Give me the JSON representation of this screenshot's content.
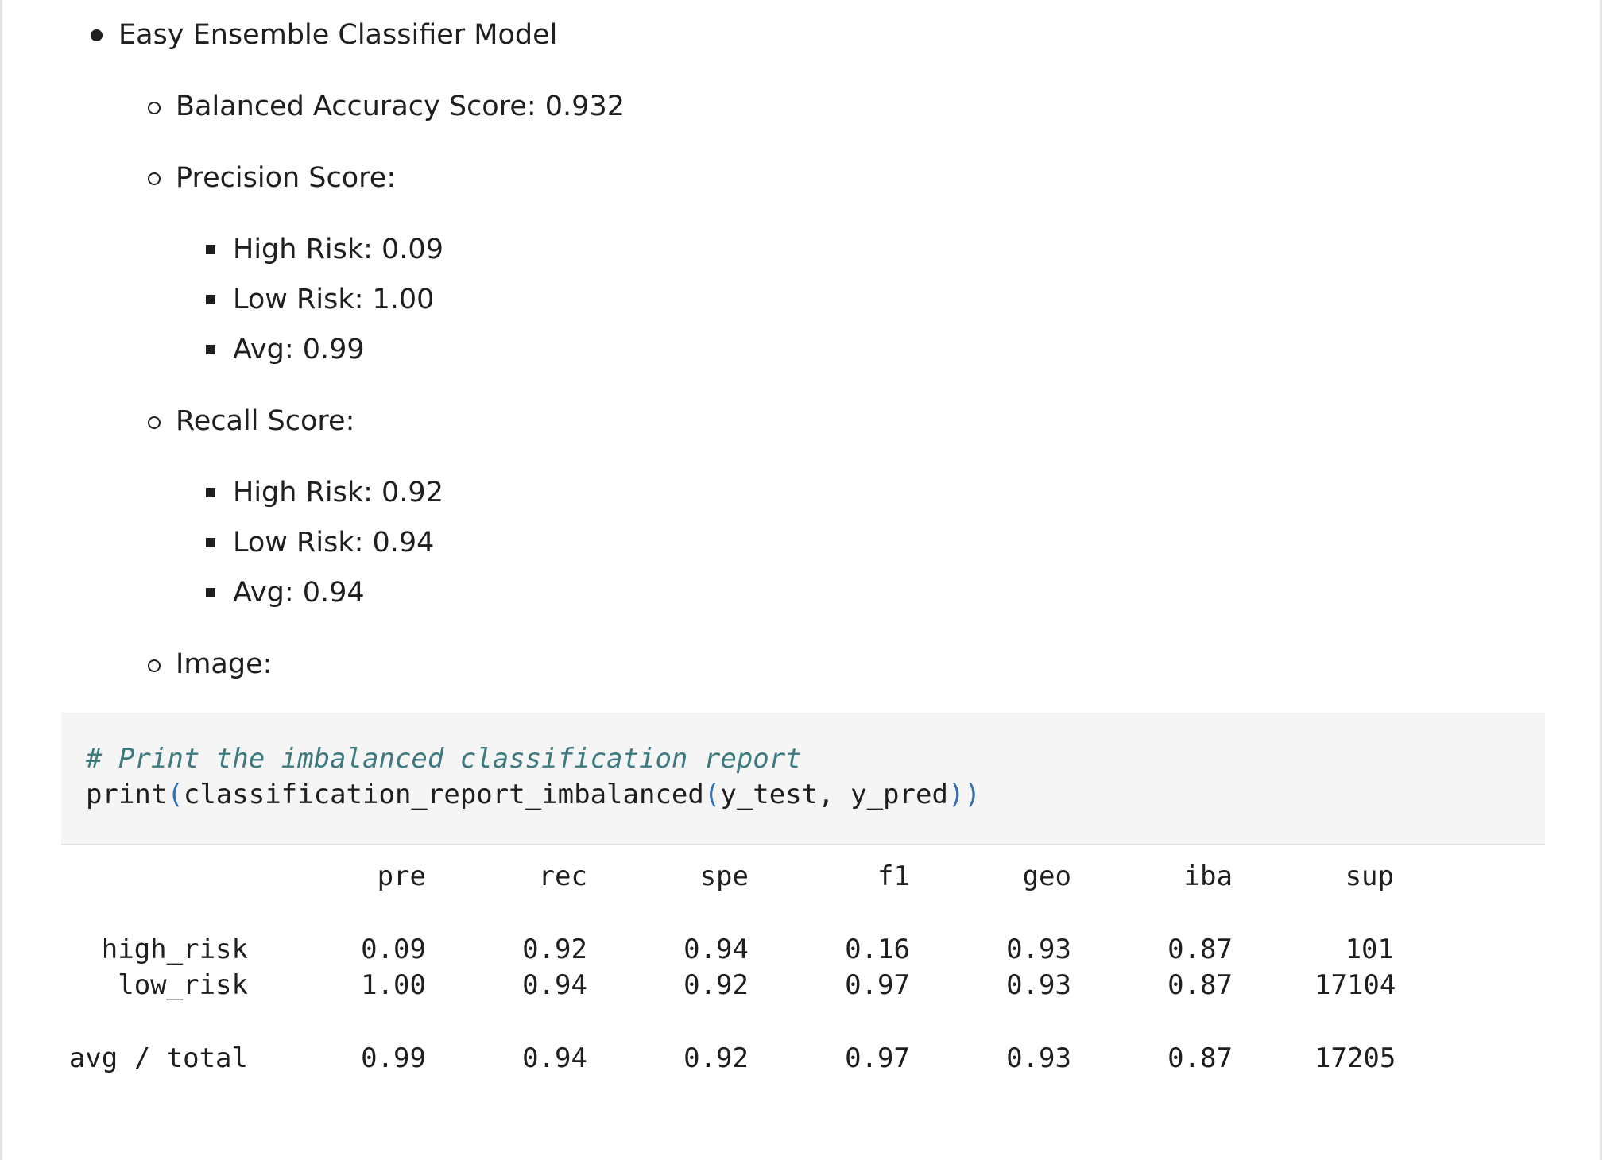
{
  "list": {
    "model_title": "Easy Ensemble Classifier Model",
    "balanced_accuracy": "Balanced Accuracy Score: 0.932",
    "precision_heading": "Precision Score:",
    "precision_items": [
      "High Risk: 0.09",
      "Low Risk: 1.00",
      "Avg: 0.99"
    ],
    "recall_heading": "Recall Score:",
    "recall_items": [
      "High Risk: 0.92",
      "Low Risk: 0.94",
      "Avg: 0.94"
    ],
    "image_heading": "Image:"
  },
  "code": {
    "comment": "# Print the imbalanced classification report",
    "call_fn": "print",
    "open1": "(",
    "inner_fn": "classification_report_imbalanced",
    "open2": "(",
    "args": "y_test, y_pred",
    "close": "))"
  },
  "report": {
    "headers": [
      "pre",
      "rec",
      "spe",
      "f1",
      "geo",
      "iba",
      "sup"
    ],
    "rows": [
      {
        "label": "high_risk",
        "values": [
          "0.09",
          "0.92",
          "0.94",
          "0.16",
          "0.93",
          "0.87",
          "101"
        ]
      },
      {
        "label": "low_risk",
        "values": [
          "1.00",
          "0.94",
          "0.92",
          "0.97",
          "0.93",
          "0.87",
          "17104"
        ]
      },
      {
        "label": "avg / total",
        "values": [
          "0.99",
          "0.94",
          "0.92",
          "0.97",
          "0.93",
          "0.87",
          "17205"
        ]
      }
    ]
  },
  "colors": {
    "comment": "#3c7a7f",
    "paren": "#2f6fb5",
    "code_background": "#f5f5f5"
  }
}
